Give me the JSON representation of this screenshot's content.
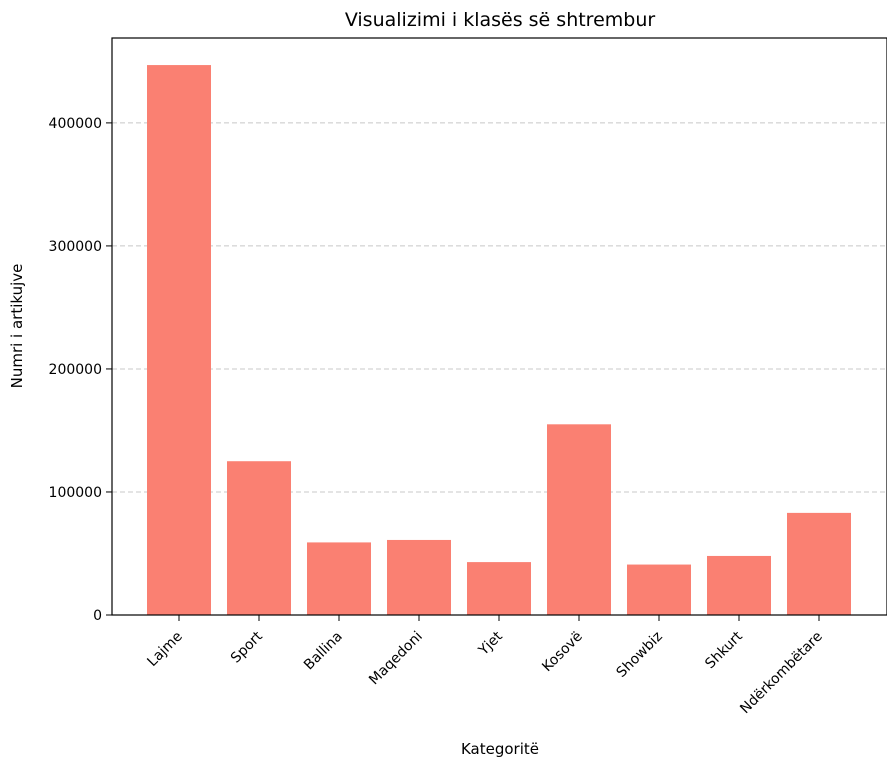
{
  "chart_data": {
    "type": "bar",
    "title": "Visualizimi i klasës së shtrembur",
    "xlabel": "Kategoritë",
    "ylabel": "Numri i artikujve",
    "categories": [
      "Lajme",
      "Sport",
      "Ballina",
      "Maqedoni",
      "Yjet",
      "Kosovë",
      "Showbiz",
      "Shkurt",
      "Ndërkombëtare"
    ],
    "values": [
      447000,
      125000,
      59000,
      61000,
      43000,
      155000,
      41000,
      48000,
      83000
    ],
    "ylim": [
      0,
      469000
    ],
    "yticks": [
      0,
      100000,
      200000,
      300000,
      400000
    ],
    "ytick_labels": [
      "0",
      "100000",
      "200000",
      "300000",
      "400000"
    ],
    "grid": "y-dashed",
    "bar_color": "#fa8072",
    "grid_color": "#c8c8c8"
  }
}
